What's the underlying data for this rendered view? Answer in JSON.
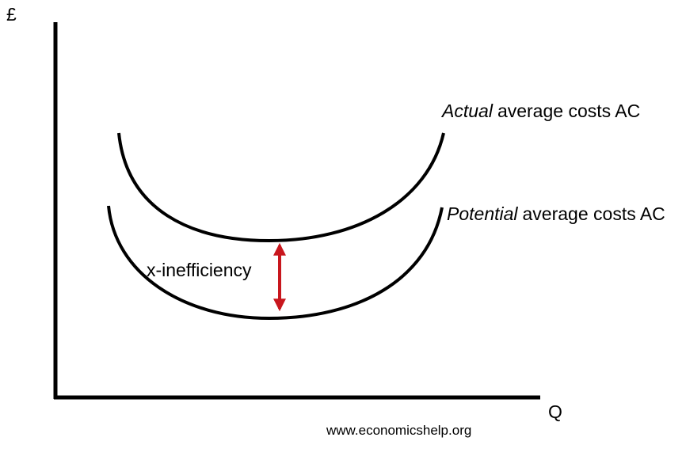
{
  "axes": {
    "y_label": "£",
    "x_label": "Q"
  },
  "curves": [
    {
      "label_emphasis": "Actual",
      "label_rest": "average costs AC"
    },
    {
      "label_emphasis": "Potential",
      "label_rest": "average costs AC"
    }
  ],
  "annotation": "x-inefficiency",
  "footer": "www.economicshelp.org"
}
